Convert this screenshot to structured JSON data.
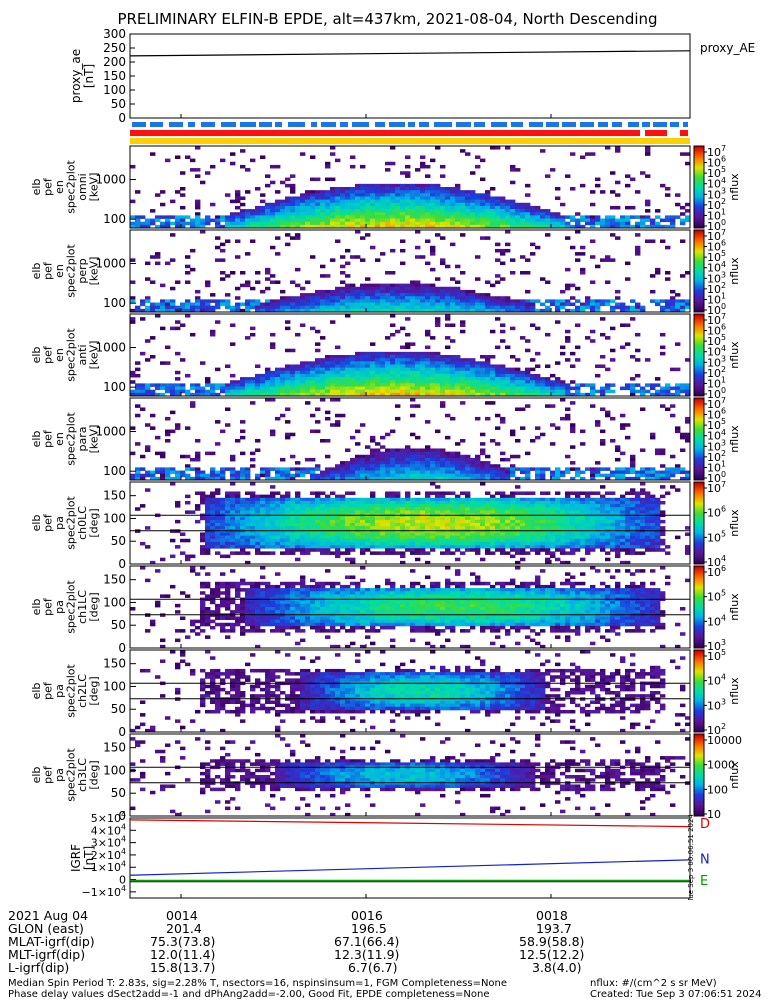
{
  "title": "PRELIMINARY ELFIN-B EPDE, alt=437km, 2021-08-04, North Descending",
  "colors": {
    "plot_border": "#000000",
    "trace_black": "#000000",
    "trace_red": "#e00000",
    "trace_blue": "#1020d0",
    "trace_green": "#00a000",
    "bar_blue": "#1a75e8",
    "bar_red": "#ff1010",
    "bar_yellow": "#ffd000"
  },
  "chart_data": [
    {
      "type": "line",
      "ylabel_lines": [
        "proxy_ae",
        "[nT]"
      ],
      "yticks": [
        "300",
        "250",
        "200",
        "150",
        "100",
        "50",
        "0"
      ],
      "ylim": [
        0,
        300
      ],
      "series": [
        {
          "name": "proxy_AE",
          "x": [
            0,
            1
          ],
          "values": [
            222,
            240
          ]
        }
      ]
    },
    {
      "type": "heatmap",
      "ylabel_lines": [
        "elb",
        "pef",
        "en",
        "spec2plot",
        "omni",
        "[keV]"
      ],
      "yticks": [
        "1000",
        "100"
      ],
      "ylim": [
        60,
        7000
      ],
      "log_y": true,
      "intensity": 0.95,
      "band_x": [
        0.16,
        0.78
      ],
      "band_top": 0.55,
      "clabel": "nflux",
      "cticks": [
        [
          "10",
          "7"
        ],
        [
          "10",
          "6"
        ],
        [
          "10",
          "5"
        ],
        [
          "10",
          "4"
        ],
        [
          "10",
          "3"
        ],
        [
          "10",
          "2"
        ],
        [
          "10",
          "1"
        ],
        [
          "10",
          "0"
        ]
      ]
    },
    {
      "type": "heatmap",
      "ylabel_lines": [
        "elb",
        "pef",
        "en",
        "spec2plot",
        "perp",
        "[keV]"
      ],
      "yticks": [
        "1000",
        "100"
      ],
      "ylim": [
        60,
        7000
      ],
      "log_y": true,
      "intensity": 0.6,
      "band_x": [
        0.22,
        0.72
      ],
      "band_top": 0.35,
      "clabel": "nflux",
      "cticks": [
        [
          "10",
          "7"
        ],
        [
          "10",
          "6"
        ],
        [
          "10",
          "5"
        ],
        [
          "10",
          "4"
        ],
        [
          "10",
          "3"
        ],
        [
          "10",
          "2"
        ],
        [
          "10",
          "1"
        ],
        [
          "10",
          "0"
        ]
      ]
    },
    {
      "type": "heatmap",
      "ylabel_lines": [
        "elb",
        "pef",
        "en",
        "spec2plot",
        "anti",
        "[keV]"
      ],
      "yticks": [
        "1000",
        "100"
      ],
      "ylim": [
        60,
        7000
      ],
      "log_y": true,
      "intensity": 0.95,
      "band_x": [
        0.16,
        0.78
      ],
      "band_top": 0.55,
      "clabel": "nflux",
      "cticks": [
        [
          "10",
          "7"
        ],
        [
          "10",
          "6"
        ],
        [
          "10",
          "5"
        ],
        [
          "10",
          "4"
        ],
        [
          "10",
          "3"
        ],
        [
          "10",
          "2"
        ],
        [
          "10",
          "1"
        ],
        [
          "10",
          "0"
        ]
      ]
    },
    {
      "type": "heatmap",
      "ylabel_lines": [
        "elb",
        "pef",
        "en",
        "spec2plot",
        "para",
        "[keV]"
      ],
      "yticks": [
        "1000",
        "100"
      ],
      "ylim": [
        60,
        7000
      ],
      "log_y": true,
      "intensity": 0.55,
      "band_x": [
        0.33,
        0.68
      ],
      "band_top": 0.4,
      "clabel": "nflux",
      "cticks": [
        [
          "10",
          "7"
        ],
        [
          "10",
          "6"
        ],
        [
          "10",
          "5"
        ],
        [
          "10",
          "4"
        ],
        [
          "10",
          "3"
        ],
        [
          "10",
          "2"
        ],
        [
          "10",
          "1"
        ],
        [
          "10",
          "0"
        ]
      ]
    },
    {
      "type": "heatmap",
      "ylabel_lines": [
        "elb",
        "pef",
        "pa",
        "spec2plot",
        "ch0LC",
        "[deg]"
      ],
      "yticks": [
        "150",
        "100",
        "50",
        "0"
      ],
      "ylim": [
        0,
        180
      ],
      "intensity": 0.85,
      "band_x": [
        0.12,
        0.95
      ],
      "pa_center": 90,
      "pa_halfwidth": 55,
      "guide_lines": [
        73,
        107
      ],
      "clabel": "nflux",
      "cticks": [
        [
          "10",
          "7"
        ],
        [
          "10",
          "6"
        ],
        [
          "10",
          "5"
        ],
        [
          "10",
          "4"
        ]
      ]
    },
    {
      "type": "heatmap",
      "ylabel_lines": [
        "elb",
        "pef",
        "pa",
        "spec2plot",
        "ch1LC",
        "[deg]"
      ],
      "yticks": [
        "150",
        "100",
        "50",
        "0"
      ],
      "ylim": [
        0,
        180
      ],
      "intensity": 0.7,
      "band_x": [
        0.2,
        0.95
      ],
      "pa_center": 90,
      "pa_halfwidth": 45,
      "guide_lines": [
        73,
        107
      ],
      "clabel": "nflux",
      "cticks": [
        [
          "10",
          "6"
        ],
        [
          "10",
          "5"
        ],
        [
          "10",
          "4"
        ],
        [
          "10",
          "3"
        ]
      ]
    },
    {
      "type": "heatmap",
      "ylabel_lines": [
        "elb",
        "pef",
        "pa",
        "spec2plot",
        "ch2LC",
        "[deg]"
      ],
      "yticks": [
        "150",
        "100",
        "50",
        "0"
      ],
      "ylim": [
        0,
        180
      ],
      "intensity": 0.6,
      "band_x": [
        0.3,
        0.74
      ],
      "pa_center": 90,
      "pa_halfwidth": 40,
      "guide_lines": [
        73,
        107
      ],
      "clabel": "nflux",
      "cticks": [
        [
          "10",
          "5"
        ],
        [
          "10",
          "4"
        ],
        [
          "10",
          "3"
        ],
        [
          "10",
          "2"
        ]
      ]
    },
    {
      "type": "heatmap",
      "ylabel_lines": [
        "elb",
        "pef",
        "pa",
        "spec2plot",
        "ch3LC",
        "[deg]"
      ],
      "yticks": [
        "150",
        "100",
        "50",
        "0"
      ],
      "ylim": [
        0,
        180
      ],
      "intensity": 0.5,
      "band_x": [
        0.25,
        0.72
      ],
      "pa_center": 90,
      "pa_halfwidth": 30,
      "guide_lines": [
        73,
        107
      ],
      "clabel": "nflux",
      "cticks": [
        [
          "10000"
        ],
        [
          "1000"
        ],
        [
          "100"
        ],
        [
          "10"
        ]
      ]
    },
    {
      "type": "line",
      "ylabel_lines": [
        "IGRF",
        "[nT]"
      ],
      "ylim": [
        -15000,
        50000
      ],
      "yticks_sci": [
        [
          "5×10",
          "4"
        ],
        [
          "4×10",
          "4"
        ],
        [
          "3×10",
          "4"
        ],
        [
          "2×10",
          "4"
        ],
        [
          "1×10",
          "4"
        ],
        [
          "0"
        ],
        [
          "−1×10",
          "4"
        ]
      ],
      "ytick_values": [
        50000,
        40000,
        30000,
        20000,
        10000,
        0,
        -10000
      ],
      "side_text": "Tue Sep 3 00:06:51 2024",
      "series": [
        {
          "name": "D",
          "x": [
            0,
            1
          ],
          "values": [
            48500,
            43000
          ]
        },
        {
          "name": "N",
          "x": [
            0,
            1
          ],
          "values": [
            3500,
            16000
          ]
        },
        {
          "name": "E",
          "x": [
            0,
            1
          ],
          "values": [
            -700,
            -700
          ]
        }
      ]
    }
  ],
  "xaxis": {
    "tick_labels": [
      "0014",
      "0016",
      "0018"
    ]
  },
  "ephemeris": [
    {
      "label": "2021 Aug 04",
      "values": [
        "0014",
        "0016",
        "0018"
      ]
    },
    {
      "label": "GLON (east)",
      "values": [
        "201.4",
        "196.5",
        "193.7"
      ]
    },
    {
      "label": "MLAT-igrf(dip)",
      "values": [
        "75.3(73.8)",
        "67.1(66.4)",
        "58.9(58.8)"
      ]
    },
    {
      "label": "MLT-igrf(dip)",
      "values": [
        "12.0(11.4)",
        "12.3(11.9)",
        "12.5(12.2)"
      ]
    },
    {
      "label": "L-igrf(dip)",
      "values": [
        "15.8(13.7)",
        "6.7(6.7)",
        "3.8(4.0)"
      ]
    }
  ],
  "footer": {
    "line1": "Median Spin Period T: 2.83s, sig=2.28% T, nsectors=16, nspinsinsum=1, FGM Completeness=None",
    "line2": "Phase delay values dSect2add=-1 and dPhAng2add=-2.00, Good Fit, EPDE completeness=None",
    "units": "nflux: #/(cm^2 s sr MeV)",
    "created": "Created: Tue Sep  3 07:06:51 2024"
  }
}
